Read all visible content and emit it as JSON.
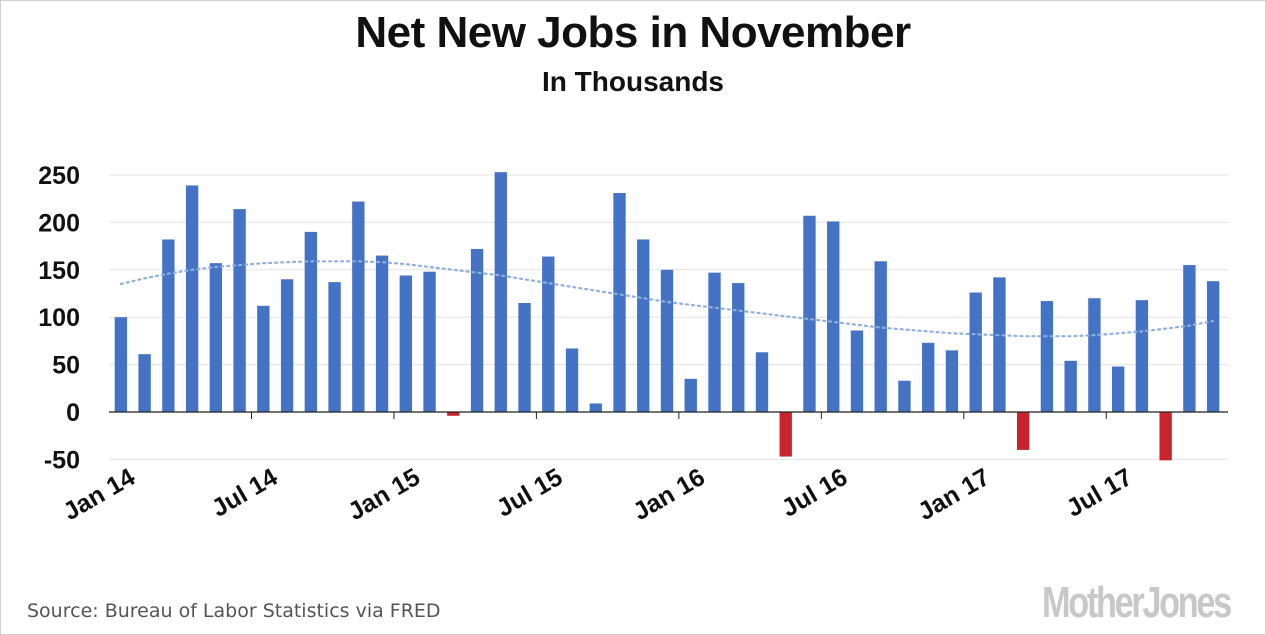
{
  "chart_data": {
    "type": "bar",
    "title": "Net New Jobs in November",
    "subtitle": "In Thousands",
    "ylim": [
      -60,
      260
    ],
    "yticks": [
      250,
      200,
      150,
      100,
      50,
      0,
      -50
    ],
    "xtick_labels": [
      {
        "label": "Jan 14",
        "index": 0
      },
      {
        "label": "Jul 14",
        "index": 6
      },
      {
        "label": "Jan 15",
        "index": 12
      },
      {
        "label": "Jul 15",
        "index": 18
      },
      {
        "label": "Jan 16",
        "index": 24
      },
      {
        "label": "Jul 16",
        "index": 30
      },
      {
        "label": "Jan 17",
        "index": 36
      },
      {
        "label": "Jul 17",
        "index": 42
      }
    ],
    "categories": [
      "Jan 14",
      "Feb 14",
      "Mar 14",
      "Apr 14",
      "May 14",
      "Jun 14",
      "Jul 14",
      "Aug 14",
      "Sep 14",
      "Oct 14",
      "Nov 14",
      "Dec 14",
      "Jan 15",
      "Feb 15",
      "Mar 15",
      "Apr 15",
      "May 15",
      "Jun 15",
      "Jul 15",
      "Aug 15",
      "Sep 15",
      "Oct 15",
      "Nov 15",
      "Dec 15",
      "Jan 16",
      "Feb 16",
      "Mar 16",
      "Apr 16",
      "May 16",
      "Jun 16",
      "Jul 16",
      "Aug 16",
      "Sep 16",
      "Oct 16",
      "Nov 16",
      "Dec 16",
      "Jan 17",
      "Feb 17",
      "Mar 17",
      "Apr 17",
      "May 17",
      "Jun 17",
      "Jul 17",
      "Aug 17",
      "Sep 17",
      "Oct 17",
      "Nov 17"
    ],
    "values": [
      100,
      61,
      182,
      239,
      157,
      214,
      112,
      140,
      190,
      137,
      222,
      165,
      144,
      148,
      -4,
      172,
      253,
      115,
      164,
      67,
      9,
      231,
      182,
      150,
      35,
      147,
      136,
      63,
      -47,
      207,
      201,
      86,
      159,
      33,
      73,
      65,
      126,
      142,
      -40,
      117,
      54,
      120,
      48,
      118,
      -51,
      155,
      138
    ],
    "trend": [
      135,
      141,
      146,
      150,
      153,
      155,
      157,
      158,
      159,
      159,
      159,
      158,
      156,
      153,
      150,
      147,
      144,
      140,
      136,
      132,
      128,
      124,
      120,
      116,
      113,
      110,
      107,
      104,
      101,
      98,
      95,
      92,
      89,
      87,
      85,
      83,
      82,
      81,
      80,
      80,
      80,
      81,
      83,
      85,
      88,
      91,
      96
    ],
    "colors": {
      "positive": "#4472c4",
      "negative": "#c9242b",
      "trend": "#8fb0de",
      "grid": "#e3e3e3",
      "axis": "#222222"
    },
    "grid": true,
    "legend": "none"
  },
  "source_text": "Source: Bureau of Labor Statistics via FRED",
  "logo_text": "MotherJones"
}
